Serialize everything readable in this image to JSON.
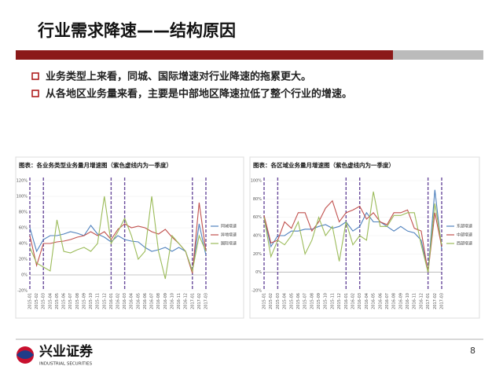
{
  "slide": {
    "title": "行业需求降速——结构原因",
    "bullets": [
      "业务类型上来看，同城、国际增速对行业降速的拖累更大。",
      "从各地区业务量来看，主要是中部地区降速拉低了整个行业的增速。"
    ],
    "logo_cn": "兴业证券",
    "logo_en": "INDUSTRIAL SECURITIES",
    "page_number": "8"
  },
  "chart_data": [
    {
      "type": "line",
      "title": "图表：各业务类型业务量月增速图（紫色虚线内为一季度）",
      "categories": [
        "2015-01",
        "2015-02",
        "2015-03",
        "2015-04",
        "2015-05",
        "2015-06",
        "2015-07",
        "2015-08",
        "2015-09",
        "2015-10",
        "2015-11",
        "2015-12",
        "2016-01",
        "2016-02",
        "2016-03",
        "2016-04",
        "2016-05",
        "2016-06",
        "2016-07",
        "2016-08",
        "2016-09",
        "2016-10",
        "2016-11",
        "2016-12",
        "2017-01",
        "2017-02",
        "2017-03"
      ],
      "series": [
        {
          "name": "同城增速",
          "color": "#4f81bd",
          "values": [
            60,
            30,
            45,
            50,
            50,
            52,
            55,
            53,
            50,
            63,
            52,
            48,
            42,
            50,
            45,
            43,
            42,
            35,
            30,
            32,
            35,
            30,
            35,
            30,
            5,
            65,
            25
          ]
        },
        {
          "name": "异地增速",
          "color": "#c0504d",
          "values": [
            50,
            12,
            40,
            40,
            42,
            43,
            45,
            48,
            50,
            55,
            50,
            55,
            45,
            58,
            65,
            60,
            62,
            60,
            55,
            52,
            58,
            48,
            40,
            30,
            2,
            92,
            30
          ]
        },
        {
          "name": "国际增速",
          "color": "#9bbb59",
          "values": [
            35,
            15,
            10,
            5,
            70,
            30,
            28,
            32,
            35,
            30,
            40,
            100,
            40,
            55,
            72,
            50,
            20,
            30,
            100,
            30,
            -5,
            50,
            40,
            30,
            5,
            50,
            30
          ]
        }
      ],
      "ylim": [
        -20,
        120
      ],
      "yticks": [
        {
          "value": -20,
          "label": "-20%"
        },
        {
          "value": 0,
          "label": "0%"
        },
        {
          "value": 20,
          "label": "20%"
        },
        {
          "value": 40,
          "label": "40%"
        },
        {
          "value": 60,
          "label": "60%"
        },
        {
          "value": 80,
          "label": "80%"
        },
        {
          "value": 100,
          "label": "100%"
        },
        {
          "value": 120,
          "label": "120%"
        }
      ],
      "legend": "right"
    },
    {
      "type": "line",
      "title": "图表：各区域业务量月增速图（紫色虚线内为一季度）",
      "categories": [
        "2015-01",
        "2015-02",
        "2015-03",
        "2015-04",
        "2015-05",
        "2015-06",
        "2015-07",
        "2015-08",
        "2015-09",
        "2015-10",
        "2015-11",
        "2015-12",
        "2016-01",
        "2016-02",
        "2016-03",
        "2016-04",
        "2016-05",
        "2016-06",
        "2016-07",
        "2016-08",
        "2016-09",
        "2016-10",
        "2016-11",
        "2016-12",
        "2017-01",
        "2017-02",
        "2017-03"
      ],
      "series": [
        {
          "name": "东部增速",
          "color": "#4f81bd",
          "values": [
            60,
            28,
            40,
            40,
            45,
            45,
            47,
            47,
            50,
            52,
            48,
            50,
            55,
            45,
            50,
            65,
            55,
            55,
            50,
            45,
            50,
            45,
            43,
            35,
            0,
            90,
            25
          ]
        },
        {
          "name": "中部增速",
          "color": "#c0504d",
          "values": [
            62,
            32,
            35,
            55,
            48,
            65,
            65,
            45,
            55,
            70,
            78,
            55,
            65,
            68,
            72,
            58,
            65,
            55,
            52,
            65,
            65,
            68,
            48,
            45,
            0,
            65,
            28
          ]
        },
        {
          "name": "西部增速",
          "color": "#9bbb59",
          "values": [
            60,
            17,
            35,
            30,
            40,
            55,
            20,
            35,
            60,
            40,
            50,
            12,
            55,
            30,
            40,
            35,
            88,
            50,
            50,
            62,
            62,
            65,
            65,
            30,
            0,
            75,
            30
          ]
        }
      ],
      "ylim": [
        -20,
        100
      ],
      "yticks": [
        {
          "value": -20,
          "label": "-20%"
        },
        {
          "value": 0,
          "label": "0%"
        },
        {
          "value": 20,
          "label": "20%"
        },
        {
          "value": 40,
          "label": "40%"
        },
        {
          "value": 60,
          "label": "60%"
        },
        {
          "value": 80,
          "label": "80%"
        },
        {
          "value": 100,
          "label": "100%"
        }
      ],
      "legend": "right"
    }
  ]
}
